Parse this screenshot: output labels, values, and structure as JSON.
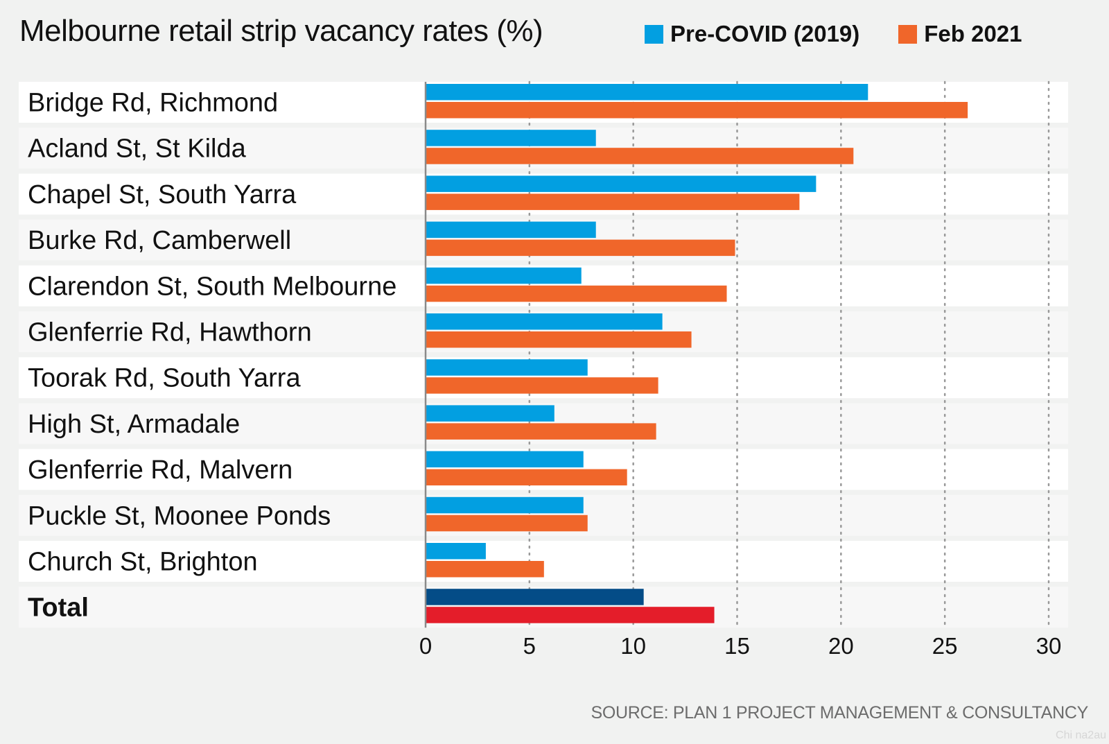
{
  "title": "Melbourne retail strip vacancy rates (%)",
  "source": "SOURCE: PLAN 1 PROJECT MANAGEMENT & CONSULTANCY",
  "watermark": "Chi na2au",
  "colors": {
    "pre_covid": "#029fe1",
    "feb_2021": "#f0662a",
    "total_pre_covid": "#044c87",
    "total_feb_2021": "#e41d2a",
    "row_band": "#ffffff",
    "background": "#f1f2f1",
    "grid": "#999999",
    "axis": "#8a8a8a"
  },
  "chart_data": {
    "type": "bar",
    "orientation": "horizontal",
    "title": "Melbourne retail strip vacancy rates (%)",
    "xlabel": "",
    "ylabel": "",
    "xlim": [
      0,
      30
    ],
    "xticks": [
      0,
      5,
      10,
      15,
      20,
      25,
      30
    ],
    "grid": true,
    "legend_position": "top",
    "categories": [
      "Bridge Rd, Richmond",
      "Acland St, St Kilda",
      "Chapel St, South Yarra",
      "Burke Rd, Camberwell",
      "Clarendon St, South Melbourne",
      "Glenferrie Rd, Hawthorn",
      "Toorak Rd, South Yarra",
      "High St, Armadale",
      "Glenferrie Rd, Malvern",
      "Puckle St, Moonee Ponds",
      "Church St, Brighton",
      "Total"
    ],
    "series": [
      {
        "name": "Pre-COVID (2019)",
        "values": [
          21.3,
          8.2,
          18.8,
          8.2,
          7.5,
          11.4,
          7.8,
          6.2,
          7.6,
          7.6,
          2.9,
          10.5
        ]
      },
      {
        "name": "Feb 2021",
        "values": [
          26.1,
          20.6,
          18.0,
          14.9,
          14.5,
          12.8,
          11.2,
          11.1,
          9.7,
          7.8,
          5.7,
          13.9
        ]
      }
    ]
  }
}
